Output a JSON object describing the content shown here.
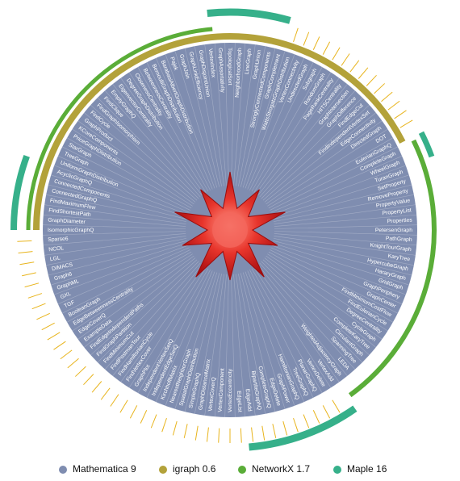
{
  "labels": [
    "TopologicalSort",
    "NeighborhoodGraph",
    "LineGraph",
    "GraphUnion",
    "StronglyConnectedComponents",
    "GraphComplement",
    "WattsStrogatzGraphDistribution",
    "VertexConnectivity",
    "UndirectedGraph",
    "Subgraph",
    "RandomGraph",
    "PageRankCentrality",
    "HITSCentrality",
    "GraphIntersection",
    "GraphDifference",
    "FindEdgeCut",
    "FindIndependentVertexSet",
    "EdgeConnectivity",
    "DirectedGraph",
    "DOT",
    "EulerianGraphQ",
    "CompleteGraph",
    "WheelGraph",
    "TuranGraph",
    "SetProperty",
    "RemoveProperty",
    "PropertyValue",
    "PropertyList",
    "Properties",
    "PetersenGraph",
    "PathGraph",
    "KnightTourGraph",
    "KaryTree",
    "HypercubeGraph",
    "HararyGraph",
    "GridGraph",
    "GraphPeriphery",
    "GraphCenter",
    "FindMinimumCostFlow",
    "FindEulerianCycle",
    "DegreeCentrality",
    "CycleGraph",
    "CompleteKaryTree",
    "CirculantGraph",
    "SpanningTree",
    "LEDA",
    "WeightedAdjacencyGraph",
    "VertexAdd",
    "VertexDelete",
    "PlanarGraphQ",
    "TreeGraphQ",
    "HamiltonianGraphQ",
    "GraphPower",
    "EdgeDelete",
    "CompleteGraphQ",
    "BipartiteGraphQ",
    "EdgeAdd",
    "EdgeList",
    "VertexEccentricity",
    "VertexComponent",
    "VertexCoverQ",
    "GraphDistanceMatrix",
    "SimpleGraphQ",
    "SpatialGraphDistribution",
    "NearestNeighborGraph",
    "KirchhoffMatrix",
    "IndependentEdgeSetQ",
    "IndependentVertexSetQ",
    "GraphPlot",
    "FindVertexCover",
    "FindHamiltonianCycle",
    "FindPostmanTour",
    "FindMinimumCut",
    "FindGraphPartition",
    "FindEdgeIndependentPaths",
    "ExampleData",
    "EdgeCoverQ",
    "EdgeBetweennessCentrality",
    "BooleanGraph",
    "TGF",
    "GXL",
    "GraphML",
    "Graph6",
    "DIMACS",
    "LGL",
    "NCOL",
    "Sparse6",
    "IsomorphicGraphQ",
    "GraphDiameter",
    "FindShortestPath",
    "FindMaximumFlow",
    "ConnectedGraphQ",
    "ConnectedComponents",
    "AcyclicGraphQ",
    "UniformGraphDistribution",
    "TreeGraph",
    "StarGraph",
    "PriceGraphDistribution",
    "KCoreComponents",
    "GraphProduct",
    "FindCycle",
    "FindGraphIsomorphism",
    "FindClique",
    "EmptyGraphQ",
    "EigenvectorCentrality",
    "DegreeGraphDistribution",
    "ClosenessCentrality",
    "BetweennessCentrality",
    "BernoulliGraphDistribution",
    "BarabasiAlbertGraphDistribution",
    "Pajek",
    "GraphJoin",
    "GraphLinkEfficiency",
    "GraphDisjointUnion",
    "VertexIndex",
    "GraphAssortativity"
  ],
  "legend": [
    {
      "name": "Mathematica 9",
      "color": "#7f8db0"
    },
    {
      "name": "igraph 0.6",
      "color": "#b3a23a"
    },
    {
      "name": "NetworkX 1.7",
      "color": "#5aad38"
    },
    {
      "name": "Maple 16",
      "color": "#36b08a"
    }
  ]
}
